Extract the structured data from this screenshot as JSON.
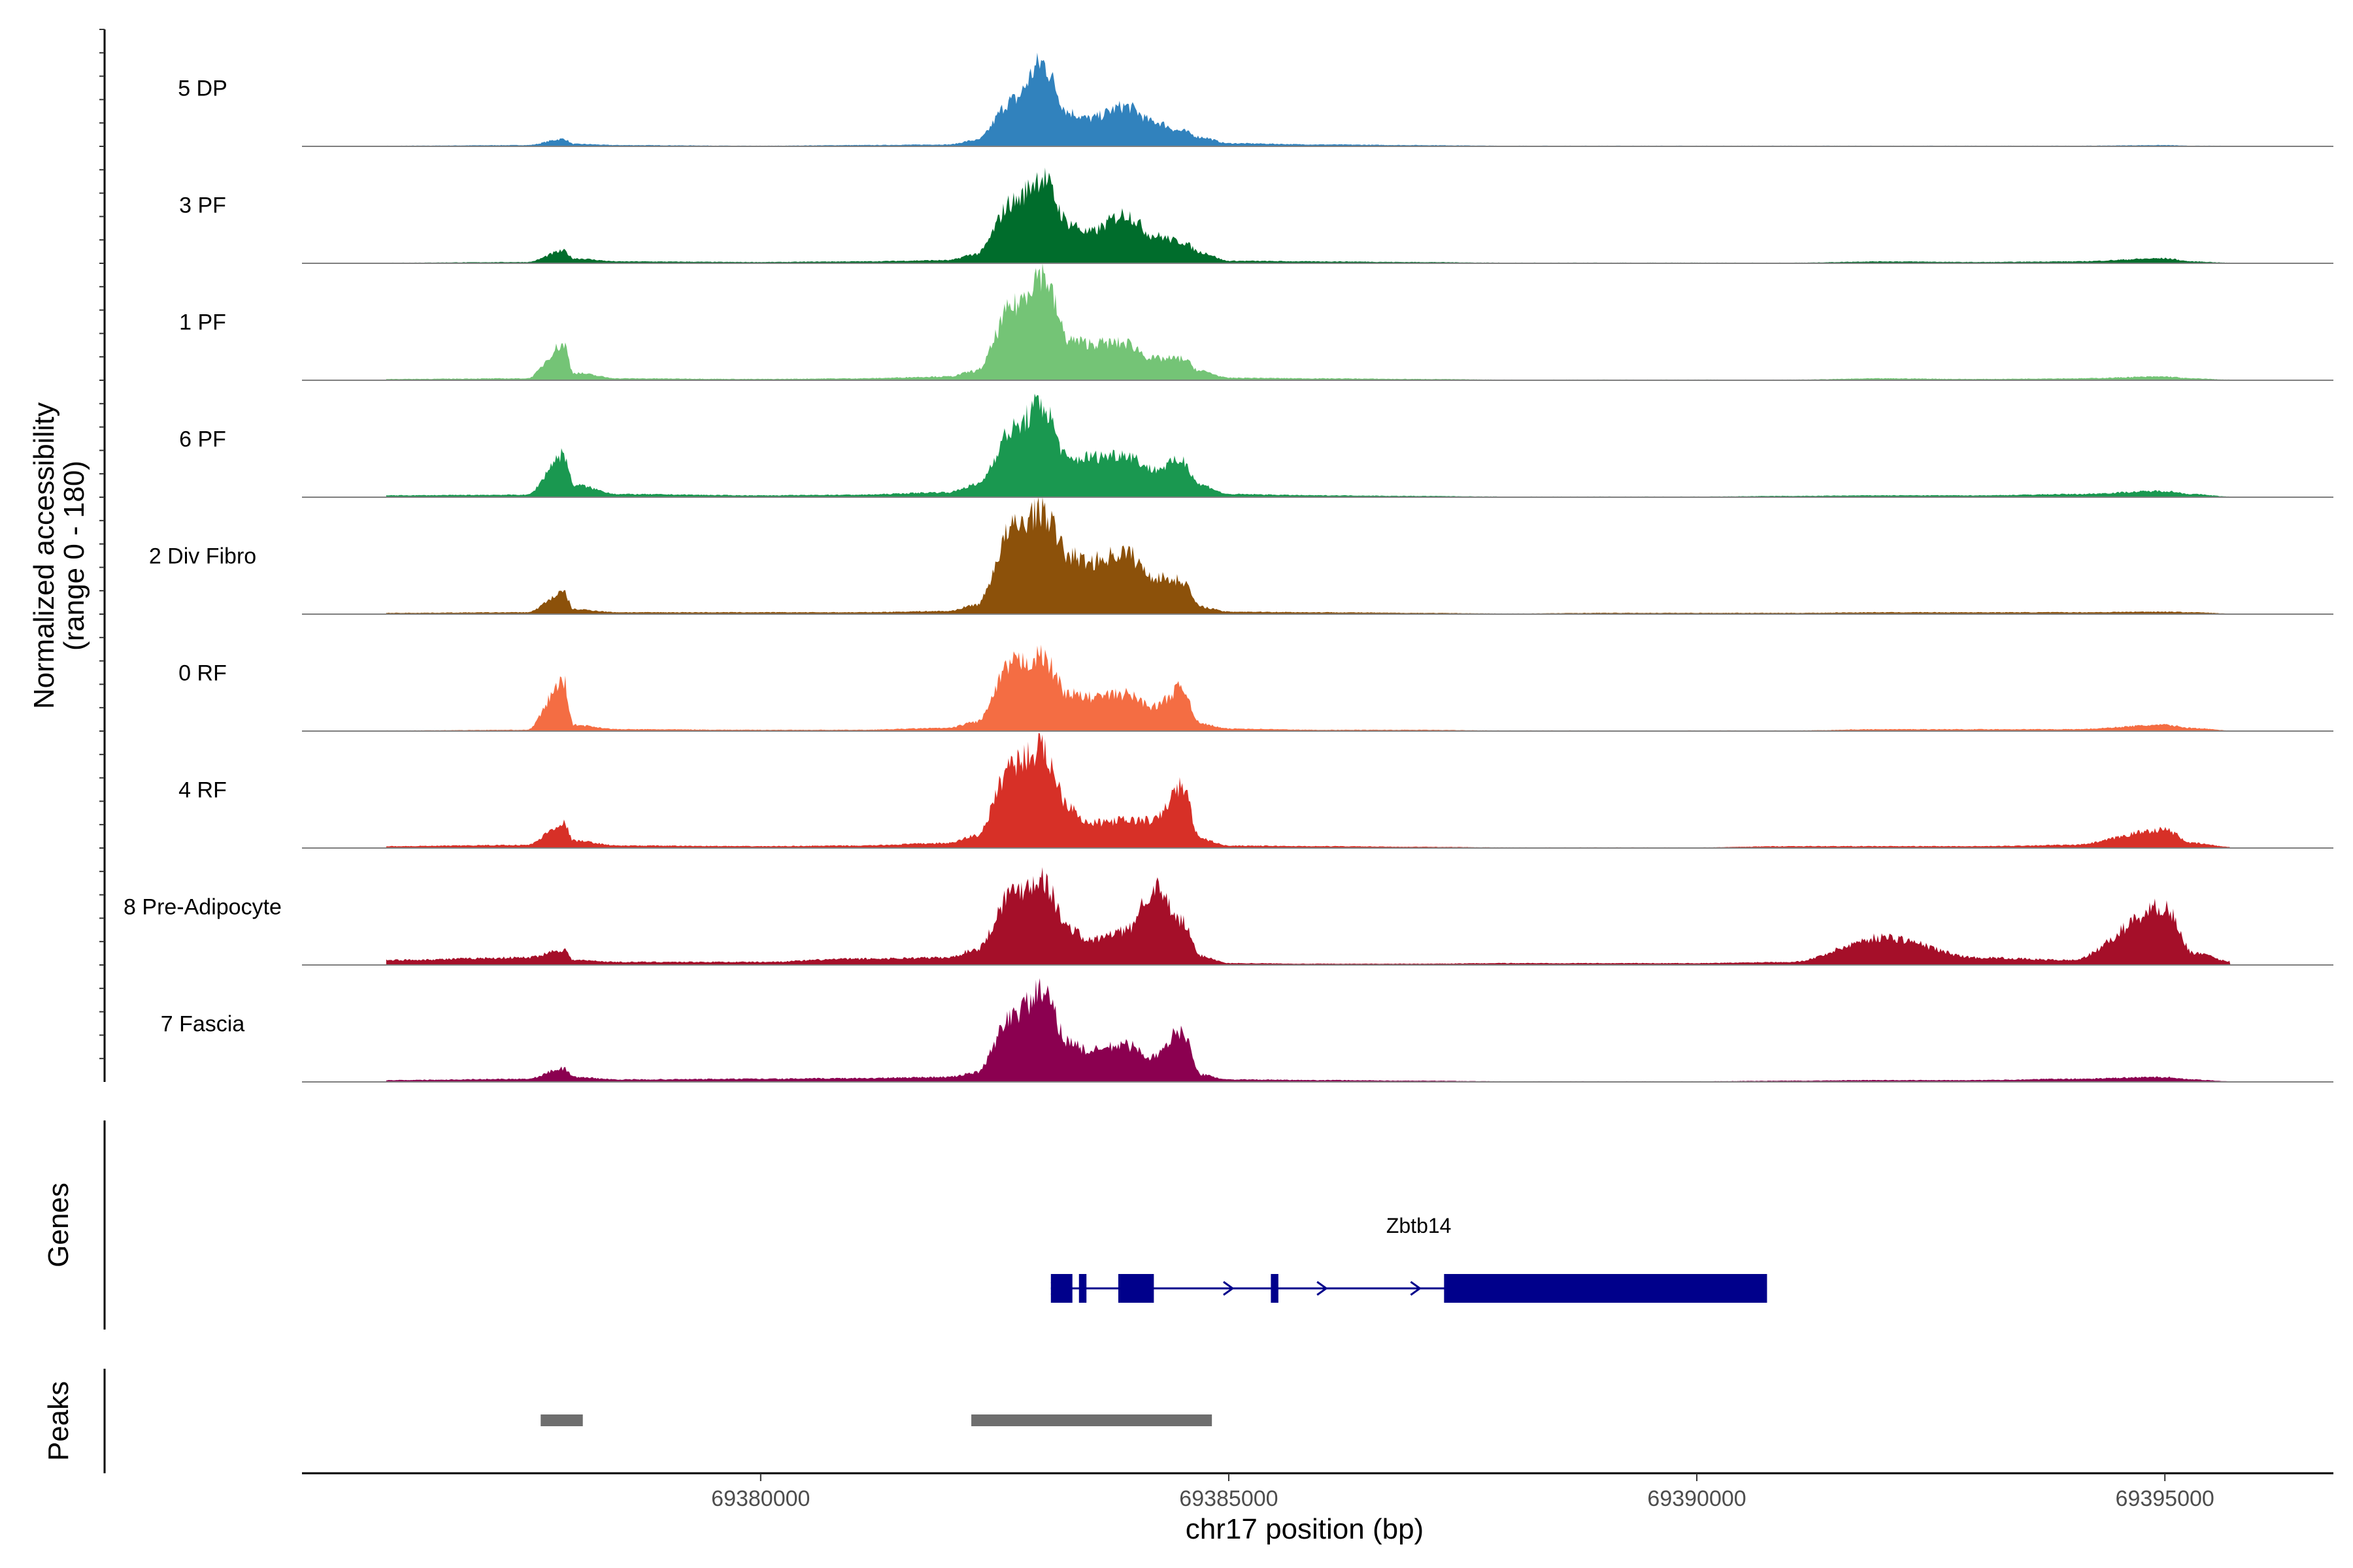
{
  "chart_data": {
    "type": "area",
    "title": "",
    "xlabel": "chr17 position (bp)",
    "ylabel": [
      "Normalized accessibility",
      "(range 0 - 180)"
    ],
    "xlim": [
      69375100,
      69396800
    ],
    "ylim": [
      0,
      180
    ],
    "x_ticks": [
      69380000,
      69385000,
      69390000,
      69395000
    ],
    "x_tick_labels": [
      "69380000",
      "69385000",
      "69390000",
      "69395000"
    ],
    "x_profile": [
      69376000,
      69377500,
      69377900,
      69378000,
      69378500,
      69380000,
      69381000,
      69382000,
      69382300,
      69382700,
      69383000,
      69383300,
      69383500,
      69383900,
      69384200,
      69384500,
      69384700,
      69385000,
      69386000,
      69387000,
      69388000,
      69389000,
      69390000,
      69391000,
      69392000,
      69393000,
      69394000,
      69395000,
      69395300,
      69395700
    ],
    "series": [
      {
        "name": "5 DP",
        "color": "#3182bd",
        "values": [
          1,
          2,
          12,
          4,
          2,
          1,
          2,
          3,
          10,
          75,
          135,
          55,
          45,
          65,
          40,
          25,
          15,
          5,
          3,
          2,
          1,
          1,
          1,
          1,
          1,
          1,
          1,
          2,
          1,
          1
        ]
      },
      {
        "name": "3 PF",
        "color": "#006d2c",
        "values": [
          1,
          2,
          20,
          8,
          3,
          2,
          3,
          5,
          15,
          100,
          140,
          65,
          50,
          80,
          45,
          35,
          18,
          4,
          3,
          2,
          1,
          1,
          1,
          1,
          3,
          2,
          3,
          8,
          3,
          1
        ]
      },
      {
        "name": "1 PF",
        "color": "#74c476",
        "values": [
          2,
          3,
          58,
          12,
          3,
          2,
          3,
          6,
          15,
          120,
          175,
          65,
          60,
          60,
          35,
          35,
          15,
          4,
          3,
          2,
          1,
          1,
          1,
          1,
          3,
          2,
          3,
          6,
          3,
          1
        ]
      },
      {
        "name": "6 PF",
        "color": "#1a9850",
        "values": [
          3,
          4,
          70,
          20,
          5,
          3,
          4,
          8,
          20,
          110,
          150,
          60,
          65,
          70,
          45,
          60,
          20,
          5,
          3,
          2,
          1,
          1,
          1,
          2,
          3,
          3,
          5,
          10,
          5,
          1
        ]
      },
      {
        "name": "2 Div Fibro",
        "color": "#8c510a",
        "values": [
          2,
          3,
          35,
          8,
          3,
          3,
          3,
          5,
          15,
          140,
          170,
          95,
          85,
          100,
          60,
          55,
          12,
          4,
          3,
          2,
          1,
          2,
          2,
          2,
          3,
          3,
          3,
          4,
          3,
          1
        ]
      },
      {
        "name": "0 RF",
        "color": "#f46d43",
        "values": [
          1,
          2,
          80,
          10,
          3,
          2,
          2,
          5,
          15,
          110,
          120,
          60,
          55,
          60,
          40,
          70,
          12,
          4,
          2,
          2,
          1,
          1,
          1,
          1,
          3,
          3,
          3,
          10,
          5,
          1
        ]
      },
      {
        "name": "4 RF",
        "color": "#d73027",
        "values": [
          3,
          5,
          40,
          12,
          4,
          3,
          4,
          8,
          20,
          140,
          160,
          70,
          40,
          45,
          45,
          100,
          15,
          4,
          3,
          2,
          1,
          1,
          1,
          3,
          3,
          3,
          5,
          30,
          8,
          2
        ]
      },
      {
        "name": "8 Pre-Adipocyte",
        "color": "#a50f29",
        "values": [
          8,
          12,
          25,
          8,
          5,
          5,
          10,
          12,
          25,
          120,
          140,
          60,
          40,
          55,
          125,
          70,
          15,
          3,
          2,
          2,
          3,
          3,
          3,
          5,
          45,
          12,
          8,
          95,
          20,
          6
        ]
      },
      {
        "name": "7 Fascia",
        "color": "#8b0050",
        "values": [
          3,
          5,
          22,
          8,
          4,
          5,
          6,
          8,
          15,
          110,
          145,
          65,
          50,
          60,
          40,
          85,
          12,
          4,
          3,
          2,
          1,
          1,
          1,
          2,
          3,
          3,
          5,
          8,
          4,
          1
        ]
      }
    ],
    "genes": [
      {
        "name": "Zbtb14",
        "start": 69383100,
        "end": 69390750,
        "strand": "+",
        "exons": [
          [
            69383100,
            69383330
          ],
          [
            69383400,
            69383480
          ],
          [
            69383820,
            69384200
          ],
          [
            69385450,
            69385530
          ],
          [
            69387300,
            69390750
          ]
        ]
      }
    ],
    "peaks": [
      [
        69377650,
        69378100
      ],
      [
        69382250,
        69384820
      ]
    ],
    "panel_titles": {
      "genes": "Genes",
      "peaks": "Peaks"
    }
  }
}
